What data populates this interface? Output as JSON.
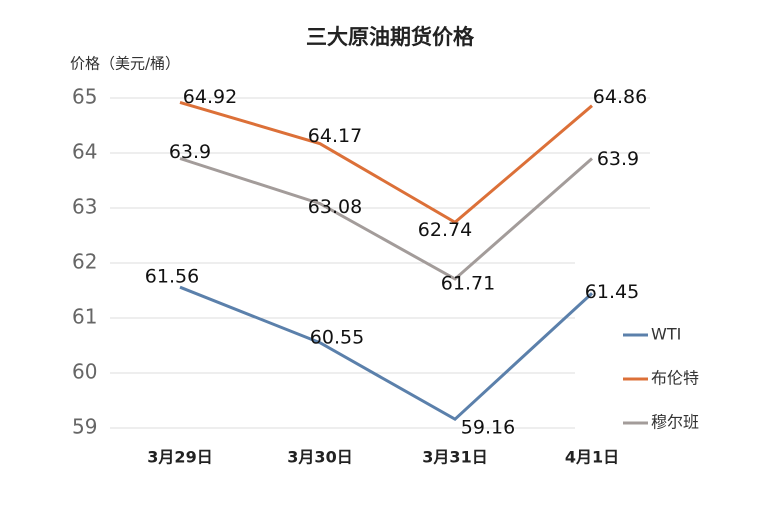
{
  "chart_data": {
    "type": "line",
    "title": "三大原油期货价格",
    "y_label": "价格（美元/桶）",
    "categories": [
      "3月29日",
      "3月30日",
      "3月31日",
      "4月1日"
    ],
    "series": [
      {
        "name": "WTI",
        "color": "#5b80ab",
        "values": [
          61.56,
          60.55,
          59.16,
          61.45
        ]
      },
      {
        "name": "布伦特",
        "color": "#dc7038",
        "values": [
          64.92,
          64.17,
          62.74,
          64.86
        ]
      },
      {
        "name": "穆尔班",
        "color": "#a39c9a",
        "values": [
          63.9,
          63.08,
          61.71,
          63.9
        ]
      }
    ],
    "ylim": [
      59,
      65
    ],
    "yticks": [
      59,
      60,
      61,
      62,
      63,
      64,
      65
    ],
    "grid": true,
    "legend": "right"
  }
}
